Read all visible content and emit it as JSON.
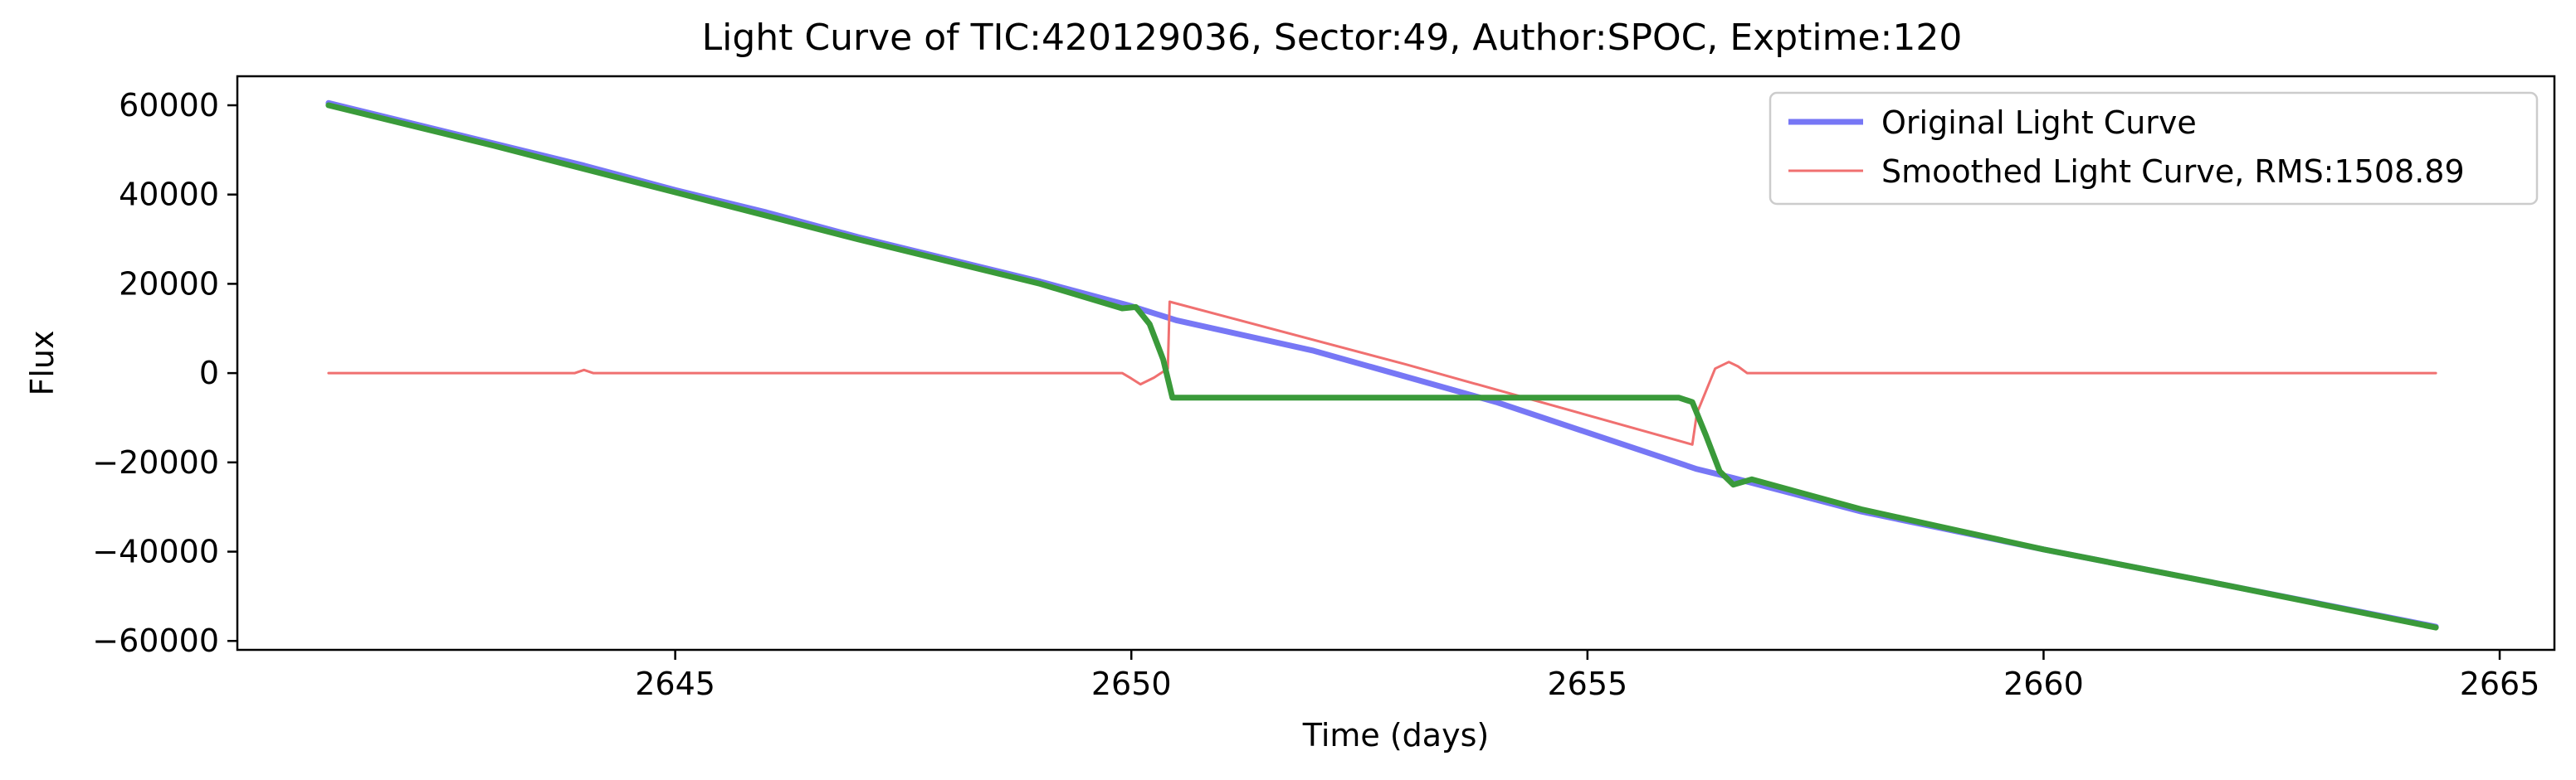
{
  "chart_data": {
    "type": "line",
    "title": "Light Curve of TIC:420129036, Sector:49, Author:SPOC, Exptime:120",
    "xlabel": "Time (days)",
    "ylabel": "Flux",
    "xlim": [
      2640.2,
      2665.6
    ],
    "ylim": [
      -62000,
      66500
    ],
    "xticks": [
      2645,
      2650,
      2655,
      2660,
      2665
    ],
    "yticks": [
      -60000,
      -40000,
      -20000,
      0,
      20000,
      40000,
      60000
    ],
    "xtick_labels": [
      "2645",
      "2650",
      "2655",
      "2660",
      "2665"
    ],
    "ytick_labels": [
      "−60000",
      "−40000",
      "−20000",
      "0",
      "20000",
      "40000",
      "60000"
    ],
    "grid": false,
    "legend_position": "top-right",
    "series": [
      {
        "name": "Original Light Curve",
        "color": "#7777f5",
        "x": [
          2641.2,
          2643.0,
          2644.0,
          2645.0,
          2646.0,
          2647.0,
          2648.0,
          2649.0,
          2650.0,
          2650.5,
          2652.0,
          2654.0,
          2656.2,
          2656.6,
          2658.0,
          2660.0,
          2662.0,
          2664.3
        ],
        "y": [
          60500,
          51500,
          46500,
          41000,
          36000,
          30500,
          25500,
          20500,
          15000,
          11800,
          5000,
          -6500,
          -21500,
          -23500,
          -31000,
          -39500,
          -47500,
          -56800
        ]
      },
      {
        "name": "Smoothed Light Curve, RMS:1508.89",
        "color": "#f07070",
        "x": [
          2641.2,
          2643.9,
          2644.0,
          2644.1,
          2646.0,
          2648.0,
          2649.9,
          2650.0,
          2650.1,
          2650.25,
          2650.4,
          2650.42,
          2653.0,
          2656.15,
          2656.2,
          2656.4,
          2656.55,
          2656.65,
          2656.75,
          2659.0,
          2662.0,
          2664.3
        ],
        "y": [
          0,
          0,
          700,
          0,
          0,
          0,
          0,
          -1200,
          -2500,
          -1000,
          1000,
          16000,
          2000,
          -16000,
          -9000,
          1000,
          2500,
          1500,
          0,
          0,
          0,
          0
        ]
      },
      {
        "name": "",
        "color": "#3a9a3a",
        "x": [
          2641.2,
          2643.0,
          2645.0,
          2647.0,
          2649.0,
          2649.9,
          2650.05,
          2650.2,
          2650.35,
          2650.45,
          2653.0,
          2656.0,
          2656.15,
          2656.3,
          2656.45,
          2656.6,
          2656.8,
          2658.0,
          2660.0,
          2662.0,
          2664.3
        ],
        "y": [
          60000,
          51000,
          40500,
          30000,
          20000,
          14500,
          14800,
          11000,
          3000,
          -5500,
          -5500,
          -5500,
          -6500,
          -14000,
          -22000,
          -25000,
          -23800,
          -30500,
          -39500,
          -47500,
          -57000
        ]
      }
    ]
  }
}
